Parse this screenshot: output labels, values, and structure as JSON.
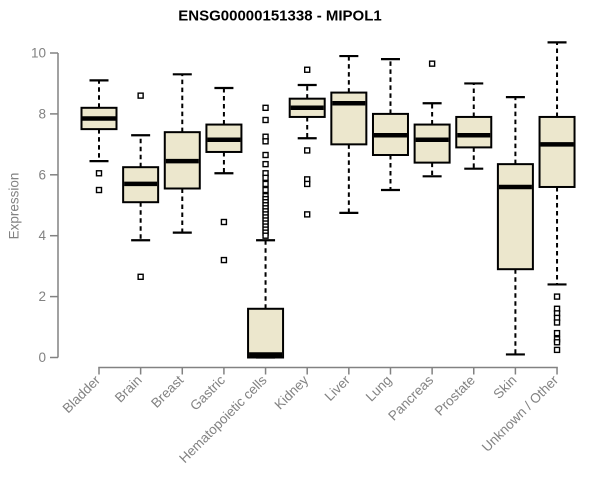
{
  "title": "ENSG00000151338 - MIPOL1",
  "chart_data": {
    "type": "boxplot",
    "title": "ENSG00000151338 - MIPOL1",
    "xlabel": "",
    "ylabel": "Expression",
    "ylim": [
      0,
      10
    ],
    "y_ticks": [
      0,
      2,
      4,
      6,
      8,
      10
    ],
    "grid": false,
    "legend": false,
    "categories": [
      "Bladder",
      "Brain",
      "Breast",
      "Gastric",
      "Hematopoietic cells",
      "Kidney",
      "Liver",
      "Lung",
      "Pancreas",
      "Prostate",
      "Skin",
      "Unknown / Other"
    ],
    "series": [
      {
        "category": "Bladder",
        "whisker_low": 6.45,
        "q1": 7.5,
        "median": 7.85,
        "q3": 8.2,
        "whisker_high": 9.1,
        "outliers": [
          6.05,
          5.5
        ]
      },
      {
        "category": "Brain",
        "whisker_low": 3.85,
        "q1": 5.1,
        "median": 5.7,
        "q3": 6.25,
        "whisker_high": 7.3,
        "outliers": [
          8.6,
          2.65
        ]
      },
      {
        "category": "Breast",
        "whisker_low": 4.1,
        "q1": 5.55,
        "median": 6.45,
        "q3": 7.4,
        "whisker_high": 9.3,
        "outliers": []
      },
      {
        "category": "Gastric",
        "whisker_low": 6.05,
        "q1": 6.75,
        "median": 7.15,
        "q3": 7.65,
        "whisker_high": 8.85,
        "outliers": [
          4.45,
          3.2
        ]
      },
      {
        "category": "Hematopoietic cells",
        "whisker_low": 0,
        "q1": 0,
        "median": 0.1,
        "q3": 1.6,
        "whisker_high": 3.85,
        "outliers": [
          8.2,
          7.8,
          7.25,
          7.1,
          6.65,
          6.35,
          6.05,
          5.9,
          5.7,
          5.5,
          5.3,
          5.2,
          5.1,
          5.0,
          4.9,
          4.8,
          4.7,
          4.6,
          4.5,
          4.4,
          4.3,
          4.2,
          4.1,
          4.0
        ]
      },
      {
        "category": "Kidney",
        "whisker_low": 7.2,
        "q1": 7.9,
        "median": 8.2,
        "q3": 8.5,
        "whisker_high": 8.95,
        "outliers": [
          9.45,
          6.8,
          5.85,
          5.7,
          4.7
        ]
      },
      {
        "category": "Liver",
        "whisker_low": 4.75,
        "q1": 7.0,
        "median": 8.35,
        "q3": 8.7,
        "whisker_high": 9.9,
        "outliers": []
      },
      {
        "category": "Lung",
        "whisker_low": 5.5,
        "q1": 6.65,
        "median": 7.3,
        "q3": 8.0,
        "whisker_high": 9.8,
        "outliers": []
      },
      {
        "category": "Pancreas",
        "whisker_low": 5.95,
        "q1": 6.4,
        "median": 7.15,
        "q3": 7.65,
        "whisker_high": 8.35,
        "outliers": [
          9.65
        ]
      },
      {
        "category": "Prostate",
        "whisker_low": 6.2,
        "q1": 6.9,
        "median": 7.3,
        "q3": 7.9,
        "whisker_high": 9.0,
        "outliers": []
      },
      {
        "category": "Skin",
        "whisker_low": 0.1,
        "q1": 2.9,
        "median": 5.6,
        "q3": 6.35,
        "whisker_high": 8.55,
        "outliers": []
      },
      {
        "category": "Unknown / Other",
        "whisker_low": 2.4,
        "q1": 5.6,
        "median": 7.0,
        "q3": 7.9,
        "whisker_high": 10.35,
        "outliers": [
          2.0,
          1.6,
          1.45,
          1.3,
          1.15,
          0.8,
          0.6,
          0.5,
          0.25
        ]
      }
    ],
    "colors": {
      "box_fill": "#ece7cd",
      "line": "#000000",
      "axis": "#828282",
      "label": "#828282",
      "title": "#000000",
      "background": "#ffffff"
    }
  }
}
